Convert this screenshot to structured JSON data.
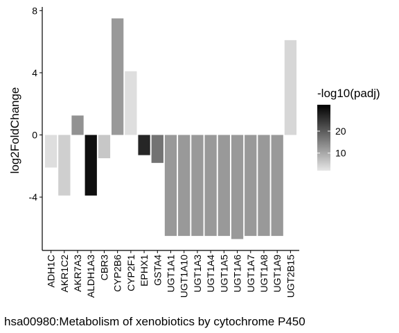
{
  "chart_data": {
    "type": "bar",
    "title": "",
    "xlabel": "hsa00980:Metabolism of xenobiotics by cytochrome P450",
    "ylabel": "log2FoldChange",
    "ylim": [
      -7.4,
      8.3
    ],
    "yticks": [
      -4,
      0,
      4,
      8
    ],
    "ytick_labels": [
      "-4",
      "0",
      "4",
      "8"
    ],
    "grid": false,
    "legend_position": "right",
    "categories": [
      "ADH1C",
      "AKR1C2",
      "AKR7A3",
      "ALDH1A3",
      "CBR3",
      "CYP2B6",
      "CYP2F1",
      "EPHX1",
      "GSTA4",
      "UGT1A1",
      "UGT1A10",
      "UGT1A3",
      "UGT1A4",
      "UGT1A5",
      "UGT1A6",
      "UGT1A7",
      "UGT1A8",
      "UGT1A9",
      "UGT2B15"
    ],
    "series": [
      {
        "values": [
          -2.1,
          -3.9,
          1.25,
          -3.9,
          -1.5,
          7.5,
          4.1,
          -1.3,
          -1.8,
          -6.5,
          -6.5,
          -6.5,
          -6.5,
          -6.5,
          -6.7,
          -6.5,
          -6.5,
          -6.5,
          6.1
        ],
        "color_values": [
          3,
          5,
          13,
          30,
          6,
          12,
          3,
          27,
          17,
          12,
          12,
          12,
          12,
          12,
          12,
          12,
          12,
          12,
          4
        ]
      }
    ],
    "legend": {
      "title": "-log10(padj)",
      "min": 2,
      "max": 32,
      "ticks": [
        10,
        20
      ],
      "tick_labels": [
        "10",
        "20"
      ],
      "color_low": "#e6e6e6",
      "color_high": "#000000"
    }
  }
}
